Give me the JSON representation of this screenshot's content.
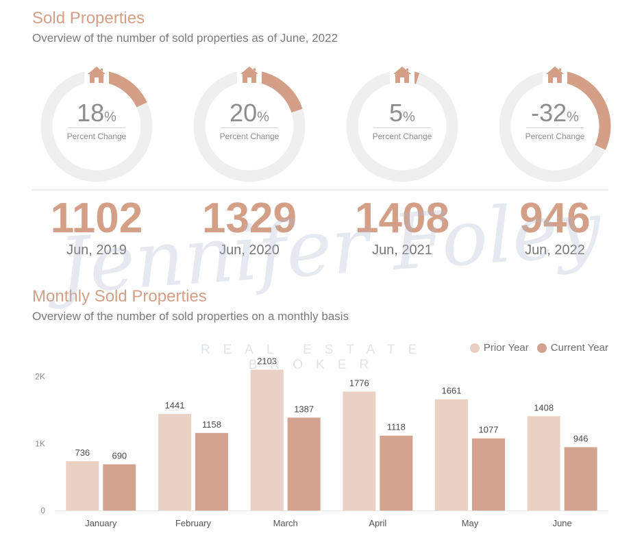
{
  "header": {
    "title": "Sold Properties",
    "subtitle": "Overview of the number of sold properties as of June, 2022"
  },
  "kpis": [
    {
      "percent": "18",
      "percent_value": 18,
      "unit": "%",
      "label": "Percent Change",
      "count": "1102",
      "period": "Jun, 2019"
    },
    {
      "percent": "20",
      "percent_value": 20,
      "unit": "%",
      "label": "Percent Change",
      "count": "1329",
      "period": "Jun, 2020"
    },
    {
      "percent": "5",
      "percent_value": 5,
      "unit": "%",
      "label": "Percent Change",
      "count": "1408",
      "period": "Jun, 2021"
    },
    {
      "percent": "-32",
      "percent_value": -32,
      "unit": "%",
      "label": "Percent Change",
      "count": "946",
      "period": "Jun, 2022"
    }
  ],
  "kpi_icon": "house-icon",
  "monthly": {
    "title": "Monthly Sold Properties",
    "subtitle": "Overview of the number of sold properties on a monthly basis"
  },
  "watermark": {
    "name": "Jennifer Foley",
    "tagline": "REAL ESTATE BROKER"
  },
  "colors": {
    "accent": "#d49f87",
    "prior_year": "#ebd1c4",
    "current_year": "#d2a38f",
    "ring_track": "#efefef",
    "text_gray": "#8d8d8d"
  },
  "chart_data": {
    "type": "bar",
    "categories": [
      "January",
      "February",
      "March",
      "April",
      "May",
      "June"
    ],
    "series": [
      {
        "name": "Prior Year",
        "values": [
          736,
          1441,
          2103,
          1776,
          1661,
          1408
        ]
      },
      {
        "name": "Current Year",
        "values": [
          690,
          1158,
          1387,
          1118,
          1077,
          946
        ]
      }
    ],
    "ytick_labels": [
      "0",
      "1K",
      "2K"
    ],
    "ytick_values": [
      0,
      1000,
      2000
    ],
    "ylim": [
      0,
      2220
    ],
    "legend": "top-right",
    "grid": false
  }
}
